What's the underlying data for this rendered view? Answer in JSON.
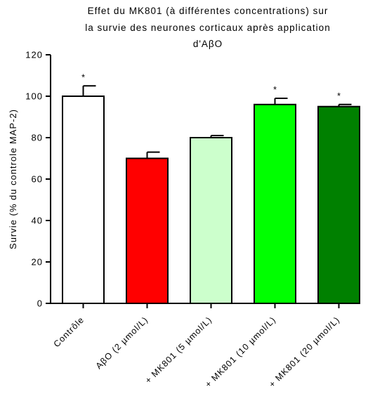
{
  "chart_data": {
    "type": "bar",
    "title_lines": [
      "Effet du MK801 (à différentes concentrations) sur",
      "la survie des neurones corticaux après application",
      "d'AβO"
    ],
    "ylabel": "Survie (% du controle MAP-2)",
    "ylim": [
      0,
      120
    ],
    "yticks": [
      0,
      20,
      40,
      60,
      80,
      100,
      120
    ],
    "categories": [
      "Contrôle",
      "AβO (2 µmol/L)",
      "+ MK801 (5 µmol/L)",
      "+ MK801 (10 µmol/L)",
      "+ MK801 (20 µmol/L)"
    ],
    "values": [
      100,
      70,
      80,
      96,
      95
    ],
    "errors": [
      5,
      3,
      1,
      3,
      1
    ],
    "significance": [
      "*",
      "",
      "",
      "*",
      "*"
    ],
    "colors": [
      "#ffffff",
      "#ff0000",
      "#ccffcc",
      "#00ff00",
      "#008000"
    ],
    "grid": false
  }
}
